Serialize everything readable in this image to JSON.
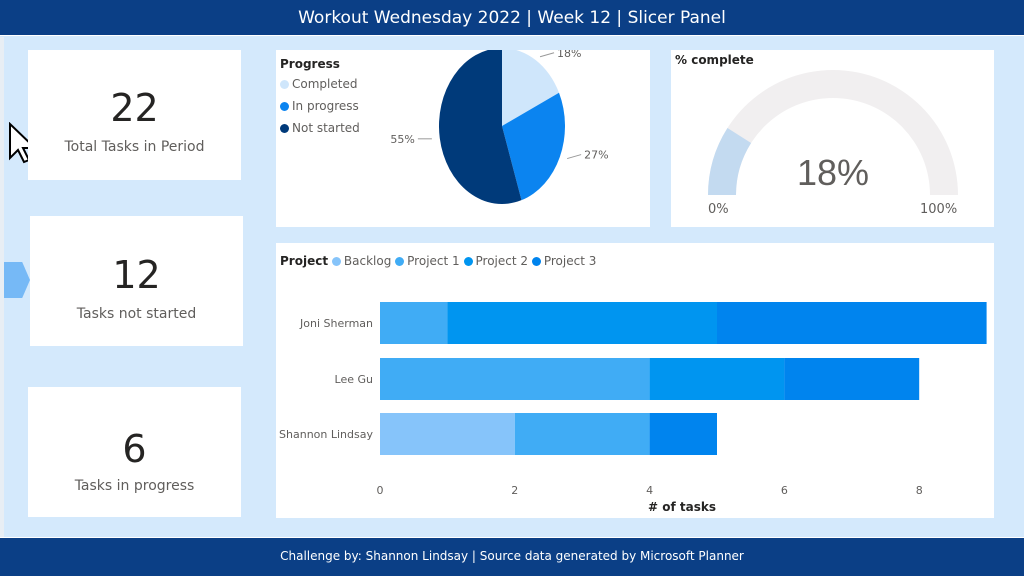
{
  "header": {
    "title": "Workout Wednesday 2022 | Week 12 | Slicer Panel"
  },
  "footer": {
    "text": "Challenge by: Shannon Lindsay | Source data generated by Microsoft Planner"
  },
  "kpis": [
    {
      "value": "22",
      "label": "Total Tasks in Period"
    },
    {
      "value": "12",
      "label": "Tasks not started"
    },
    {
      "value": "6",
      "label": "Tasks in progress"
    }
  ],
  "colors": {
    "header": "#0b3f86",
    "background": "#d4e9fc",
    "completed": "#cfe6fb",
    "in_progress": "#0b84f0",
    "not_started": "#003a7a",
    "backlog": "#86c4fa",
    "project1": "#40acf5",
    "project2": "#0095f0",
    "project3": "#0084ee",
    "gauge_fill": "#c3daf0",
    "gauge_track": "#f1eff0"
  },
  "icons": {
    "cursor": "arrow-pointer-icon",
    "slicer_toggle": "slicer-panel-expand-icon"
  },
  "chart_data": [
    {
      "type": "pie",
      "title": "Progress",
      "legend_position": "left",
      "categories": [
        "Completed",
        "In progress",
        "Not started"
      ],
      "values": [
        18,
        27,
        55
      ],
      "data_labels": [
        "18%",
        "27%",
        "55%"
      ]
    },
    {
      "type": "gauge",
      "title": "% complete",
      "value": 18,
      "value_label": "18%",
      "min_label": "0%",
      "max_label": "100%",
      "range": [
        0,
        100
      ]
    },
    {
      "type": "bar",
      "orientation": "horizontal",
      "stacked": true,
      "legend_title": "Project",
      "legend_position": "top-left",
      "categories": [
        "Joni Sherman",
        "Lee Gu",
        "Shannon Lindsay"
      ],
      "series": [
        {
          "name": "Backlog",
          "values": [
            0,
            0,
            2
          ]
        },
        {
          "name": "Project 1",
          "values": [
            1,
            4,
            2
          ]
        },
        {
          "name": "Project 2",
          "values": [
            4,
            2,
            0
          ]
        },
        {
          "name": "Project 3",
          "values": [
            4,
            2,
            1
          ]
        }
      ],
      "xlabel": "# of tasks",
      "xlim": [
        0,
        9
      ],
      "xticks": [
        "0",
        "2",
        "4",
        "6",
        "8"
      ],
      "grid": false
    }
  ]
}
